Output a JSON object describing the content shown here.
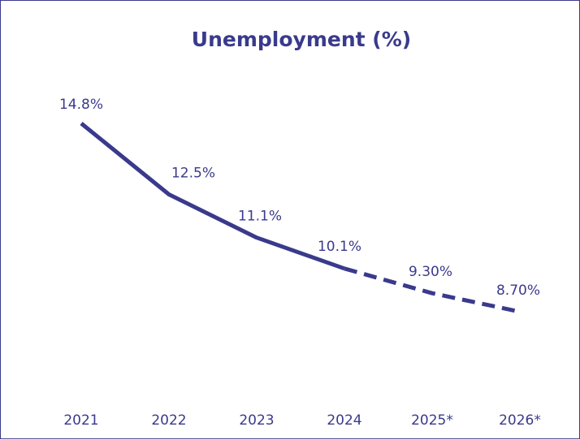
{
  "colors": {
    "series": "#3a3a8c",
    "text": "#3a3a8c",
    "background": "#ffffff"
  },
  "chart_data": {
    "type": "line",
    "title": "Unemployment (%)",
    "xlabel": "",
    "ylabel": "",
    "categories": [
      "2021",
      "2022",
      "2023",
      "2024",
      "2025*",
      "2026*"
    ],
    "series": [
      {
        "values": [
          14.8,
          12.5,
          11.1,
          10.1,
          9.3,
          8.7
        ],
        "data_labels": [
          "14.8%",
          "12.5%",
          "11.1%",
          "10.1%",
          "9.30%",
          "8.70%"
        ],
        "solid_through_index": 3,
        "dashed_from_index": 3
      }
    ],
    "ylim": [
      0,
      17
    ],
    "grid": false,
    "legend": "none",
    "y_axis_visible": false
  }
}
